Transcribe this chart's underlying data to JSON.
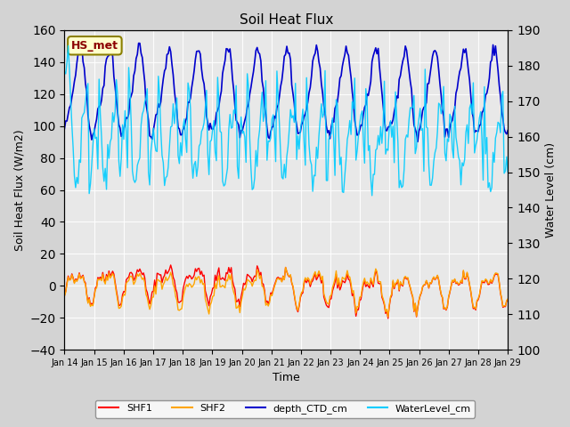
{
  "title": "Soil Heat Flux",
  "xlabel": "Time",
  "ylabel_left": "Soil Heat Flux (W/m2)",
  "ylabel_right": "Water Level (cm)",
  "ylim_left": [
    -40,
    160
  ],
  "ylim_right": [
    100,
    190
  ],
  "yticks_left": [
    -40,
    -20,
    0,
    20,
    40,
    60,
    80,
    100,
    120,
    140,
    160
  ],
  "yticks_right": [
    100,
    110,
    120,
    130,
    140,
    150,
    160,
    170,
    180,
    190
  ],
  "n_days": 15,
  "xtick_labels": [
    "Jan 14",
    "Jan 15",
    "Jan 16",
    "Jan 17",
    "Jan 18",
    "Jan 19",
    "Jan 20",
    "Jan 21",
    "Jan 22",
    "Jan 23",
    "Jan 24",
    "Jan 25",
    "Jan 26",
    "Jan 27",
    "Jan 28",
    "Jan 29"
  ],
  "annotation_text": "HS_met",
  "annotation_bg": "#ffffcc",
  "annotation_border": "#8B8000",
  "annotation_text_color": "#8B0000",
  "color_SHF1": "#ff0000",
  "color_SHF2": "#ffa500",
  "color_depth": "#0000cc",
  "color_water": "#00ccff",
  "bg_color": "#d3d3d3",
  "plot_bg_color": "#e8e8e8",
  "legend_labels": [
    "SHF1",
    "SHF2",
    "depth_CTD_cm",
    "WaterLevel_cm"
  ]
}
